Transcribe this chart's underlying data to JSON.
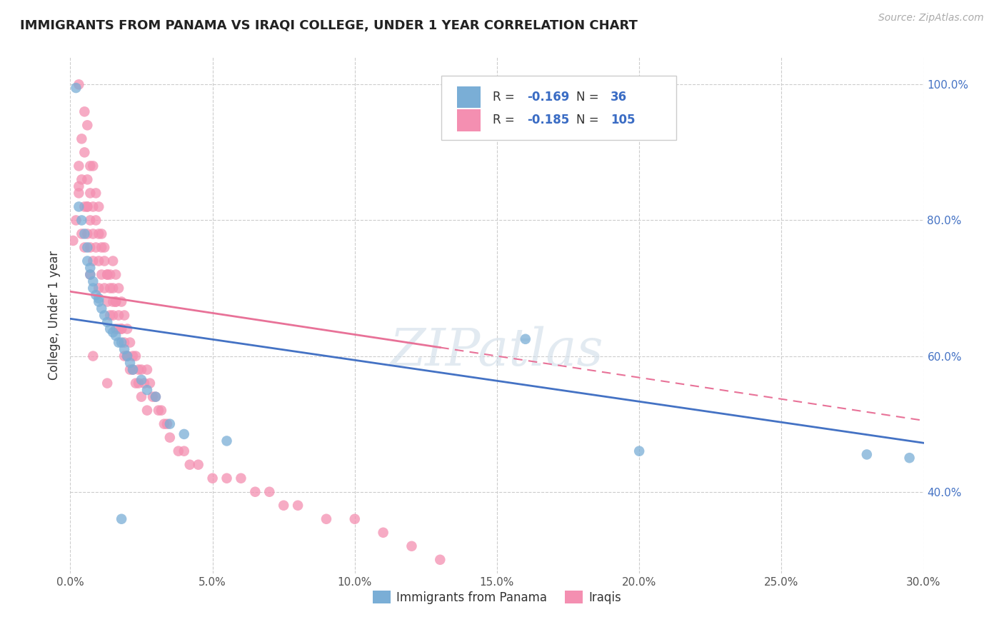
{
  "title": "IMMIGRANTS FROM PANAMA VS IRAQI COLLEGE, UNDER 1 YEAR CORRELATION CHART",
  "source": "Source: ZipAtlas.com",
  "ylabel": "College, Under 1 year",
  "xlim": [
    0.0,
    0.3
  ],
  "ylim": [
    0.28,
    1.04
  ],
  "xticks": [
    0.0,
    0.05,
    0.1,
    0.15,
    0.2,
    0.25,
    0.3
  ],
  "xticklabels": [
    "0.0%",
    "5.0%",
    "10.0%",
    "15.0%",
    "20.0%",
    "25.0%",
    "30.0%"
  ],
  "yticks": [
    0.4,
    0.6,
    0.8,
    1.0
  ],
  "yticklabels": [
    "40.0%",
    "60.0%",
    "80.0%",
    "100.0%"
  ],
  "grid_color": "#cccccc",
  "background_color": "#ffffff",
  "blue_color": "#7aaed6",
  "pink_color": "#f48fb1",
  "blue_line_color": "#4472c4",
  "pink_line_color": "#e87298",
  "legend_R_blue": "-0.169",
  "legend_N_blue": "36",
  "legend_R_pink": "-0.185",
  "legend_N_pink": "105",
  "legend_label_blue": "Immigrants from Panama",
  "legend_label_pink": "Iraqis",
  "blue_trend_x0": 0.0,
  "blue_trend_y0": 0.655,
  "blue_trend_x1": 0.3,
  "blue_trend_y1": 0.472,
  "pink_trend_x0": 0.0,
  "pink_trend_y0": 0.695,
  "pink_trend_x1": 0.3,
  "pink_trend_y1": 0.505,
  "blue_scatter_x": [
    0.002,
    0.003,
    0.004,
    0.005,
    0.006,
    0.006,
    0.007,
    0.007,
    0.008,
    0.008,
    0.009,
    0.01,
    0.01,
    0.011,
    0.012,
    0.013,
    0.014,
    0.015,
    0.016,
    0.017,
    0.018,
    0.019,
    0.02,
    0.021,
    0.022,
    0.025,
    0.027,
    0.03,
    0.035,
    0.04,
    0.055,
    0.16,
    0.2,
    0.28,
    0.295,
    0.018
  ],
  "blue_scatter_y": [
    0.995,
    0.82,
    0.8,
    0.78,
    0.76,
    0.74,
    0.73,
    0.72,
    0.71,
    0.7,
    0.69,
    0.685,
    0.68,
    0.67,
    0.66,
    0.65,
    0.64,
    0.635,
    0.63,
    0.62,
    0.62,
    0.61,
    0.6,
    0.59,
    0.58,
    0.565,
    0.55,
    0.54,
    0.5,
    0.485,
    0.475,
    0.625,
    0.46,
    0.455,
    0.45,
    0.36
  ],
  "pink_scatter_x": [
    0.001,
    0.002,
    0.003,
    0.003,
    0.004,
    0.004,
    0.005,
    0.005,
    0.006,
    0.006,
    0.006,
    0.007,
    0.007,
    0.007,
    0.008,
    0.008,
    0.008,
    0.009,
    0.009,
    0.01,
    0.01,
    0.01,
    0.011,
    0.011,
    0.012,
    0.012,
    0.013,
    0.013,
    0.014,
    0.014,
    0.015,
    0.015,
    0.015,
    0.016,
    0.016,
    0.016,
    0.017,
    0.017,
    0.018,
    0.018,
    0.019,
    0.019,
    0.02,
    0.02,
    0.021,
    0.022,
    0.023,
    0.024,
    0.025,
    0.026,
    0.027,
    0.028,
    0.029,
    0.03,
    0.031,
    0.032,
    0.033,
    0.034,
    0.035,
    0.038,
    0.04,
    0.042,
    0.045,
    0.05,
    0.055,
    0.06,
    0.065,
    0.07,
    0.075,
    0.08,
    0.09,
    0.1,
    0.11,
    0.12,
    0.13,
    0.005,
    0.007,
    0.009,
    0.011,
    0.013,
    0.015,
    0.017,
    0.019,
    0.021,
    0.023,
    0.025,
    0.027,
    0.003,
    0.006,
    0.008,
    0.01,
    0.012,
    0.014,
    0.016,
    0.018,
    0.02,
    0.022,
    0.024,
    0.013,
    0.008,
    0.006,
    0.004,
    0.003,
    0.005,
    0.007
  ],
  "pink_scatter_y": [
    0.77,
    0.8,
    0.88,
    0.84,
    0.92,
    0.86,
    0.9,
    0.82,
    0.86,
    0.82,
    0.78,
    0.84,
    0.8,
    0.76,
    0.82,
    0.78,
    0.74,
    0.8,
    0.76,
    0.78,
    0.74,
    0.7,
    0.76,
    0.72,
    0.74,
    0.7,
    0.72,
    0.68,
    0.7,
    0.66,
    0.74,
    0.7,
    0.66,
    0.72,
    0.68,
    0.64,
    0.7,
    0.66,
    0.68,
    0.64,
    0.66,
    0.62,
    0.64,
    0.6,
    0.62,
    0.6,
    0.6,
    0.58,
    0.58,
    0.56,
    0.58,
    0.56,
    0.54,
    0.54,
    0.52,
    0.52,
    0.5,
    0.5,
    0.48,
    0.46,
    0.46,
    0.44,
    0.44,
    0.42,
    0.42,
    0.42,
    0.4,
    0.4,
    0.38,
    0.38,
    0.36,
    0.36,
    0.34,
    0.32,
    0.3,
    0.96,
    0.88,
    0.84,
    0.78,
    0.72,
    0.68,
    0.64,
    0.6,
    0.58,
    0.56,
    0.54,
    0.52,
    1.0,
    0.94,
    0.88,
    0.82,
    0.76,
    0.72,
    0.68,
    0.64,
    0.6,
    0.58,
    0.56,
    0.56,
    0.6,
    0.82,
    0.78,
    0.85,
    0.76,
    0.72
  ]
}
